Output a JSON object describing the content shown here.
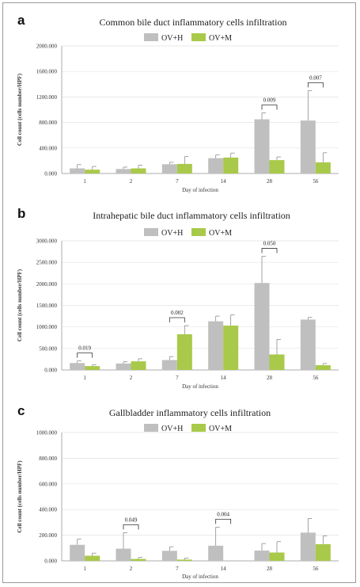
{
  "colors": {
    "OV+H": "#bfbfbf",
    "OV+M": "#a9c94a",
    "grid": "#e3e3e3",
    "axis": "#9a9a9a",
    "errorbar": "#8c8c8c"
  },
  "chart_data": [
    {
      "panel": "a",
      "type": "bar",
      "title": "Common bile duct inflammatory cells infiltration",
      "xlabel": "Day of infection",
      "ylabel": "Cell count (cells number/HPF)",
      "categories": [
        "1",
        "2",
        "7",
        "14",
        "28",
        "56"
      ],
      "ylim": [
        0,
        2000
      ],
      "yticks": [
        0,
        400,
        800,
        1200,
        1600,
        2000
      ],
      "ytick_labels": [
        "0.000",
        "400.000",
        "800.000",
        "1200.000",
        "1600.000",
        "2000.000"
      ],
      "grid": true,
      "legend_placement": "top-center",
      "series": [
        {
          "name": "OV+H",
          "values": [
            80,
            70,
            145,
            240,
            850,
            830
          ],
          "errors": [
            60,
            30,
            30,
            50,
            100,
            470
          ]
        },
        {
          "name": "OV+M",
          "values": [
            60,
            80,
            150,
            250,
            210,
            175
          ],
          "errors": [
            50,
            50,
            115,
            70,
            50,
            150
          ]
        }
      ],
      "annotations": [
        {
          "category": "28",
          "text": "0.009"
        },
        {
          "category": "56",
          "text": "0.007"
        }
      ]
    },
    {
      "panel": "b",
      "type": "bar",
      "title": "Intrahepatic bile duct inflammatory cells infiltration",
      "xlabel": "Day of infection",
      "ylabel": "Cell count (cells number/HPF)",
      "categories": [
        "1",
        "2",
        "7",
        "14",
        "28",
        "56"
      ],
      "ylim": [
        0,
        3000
      ],
      "yticks": [
        0,
        500,
        1000,
        1500,
        2000,
        2500,
        3000
      ],
      "ytick_labels": [
        "0.000",
        "500.000",
        "1000.000",
        "1500.000",
        "2000.000",
        "2500.000",
        "3000.000"
      ],
      "grid": true,
      "legend_placement": "top-center",
      "series": [
        {
          "name": "OV+H",
          "values": [
            160,
            150,
            230,
            1130,
            2020,
            1170
          ],
          "errors": [
            50,
            40,
            80,
            120,
            620,
            50
          ]
        },
        {
          "name": "OV+M",
          "values": [
            90,
            200,
            830,
            1030,
            360,
            110
          ],
          "errors": [
            30,
            60,
            200,
            250,
            350,
            40
          ]
        }
      ],
      "annotations": [
        {
          "category": "1",
          "text": "0.019"
        },
        {
          "category": "7",
          "text": "0.002"
        },
        {
          "category": "28",
          "text": "0.050"
        }
      ]
    },
    {
      "panel": "c",
      "type": "bar",
      "title": "Gallbladder inflammatory cells infiltration",
      "xlabel": "Day of infection",
      "ylabel": "Cell count (cells number/HPF)",
      "categories": [
        "1",
        "2",
        "7",
        "14",
        "28",
        "56"
      ],
      "ylim": [
        0,
        1000
      ],
      "yticks": [
        0,
        200,
        400,
        600,
        800,
        1000
      ],
      "ytick_labels": [
        "0.000",
        "200.000",
        "400.000",
        "600.000",
        "800.000",
        "1000.000"
      ],
      "grid": true,
      "legend_placement": "top-center",
      "series": [
        {
          "name": "OV+H",
          "values": [
            125,
            95,
            78,
            118,
            80,
            220
          ],
          "errors": [
            45,
            125,
            32,
            145,
            55,
            110
          ]
        },
        {
          "name": "OV+M",
          "values": [
            40,
            15,
            10,
            0,
            65,
            130
          ],
          "errors": [
            20,
            12,
            12,
            0,
            85,
            65
          ]
        }
      ],
      "annotations": [
        {
          "category": "2",
          "text": "0.049"
        },
        {
          "category": "14",
          "text": "0.004"
        }
      ]
    }
  ]
}
